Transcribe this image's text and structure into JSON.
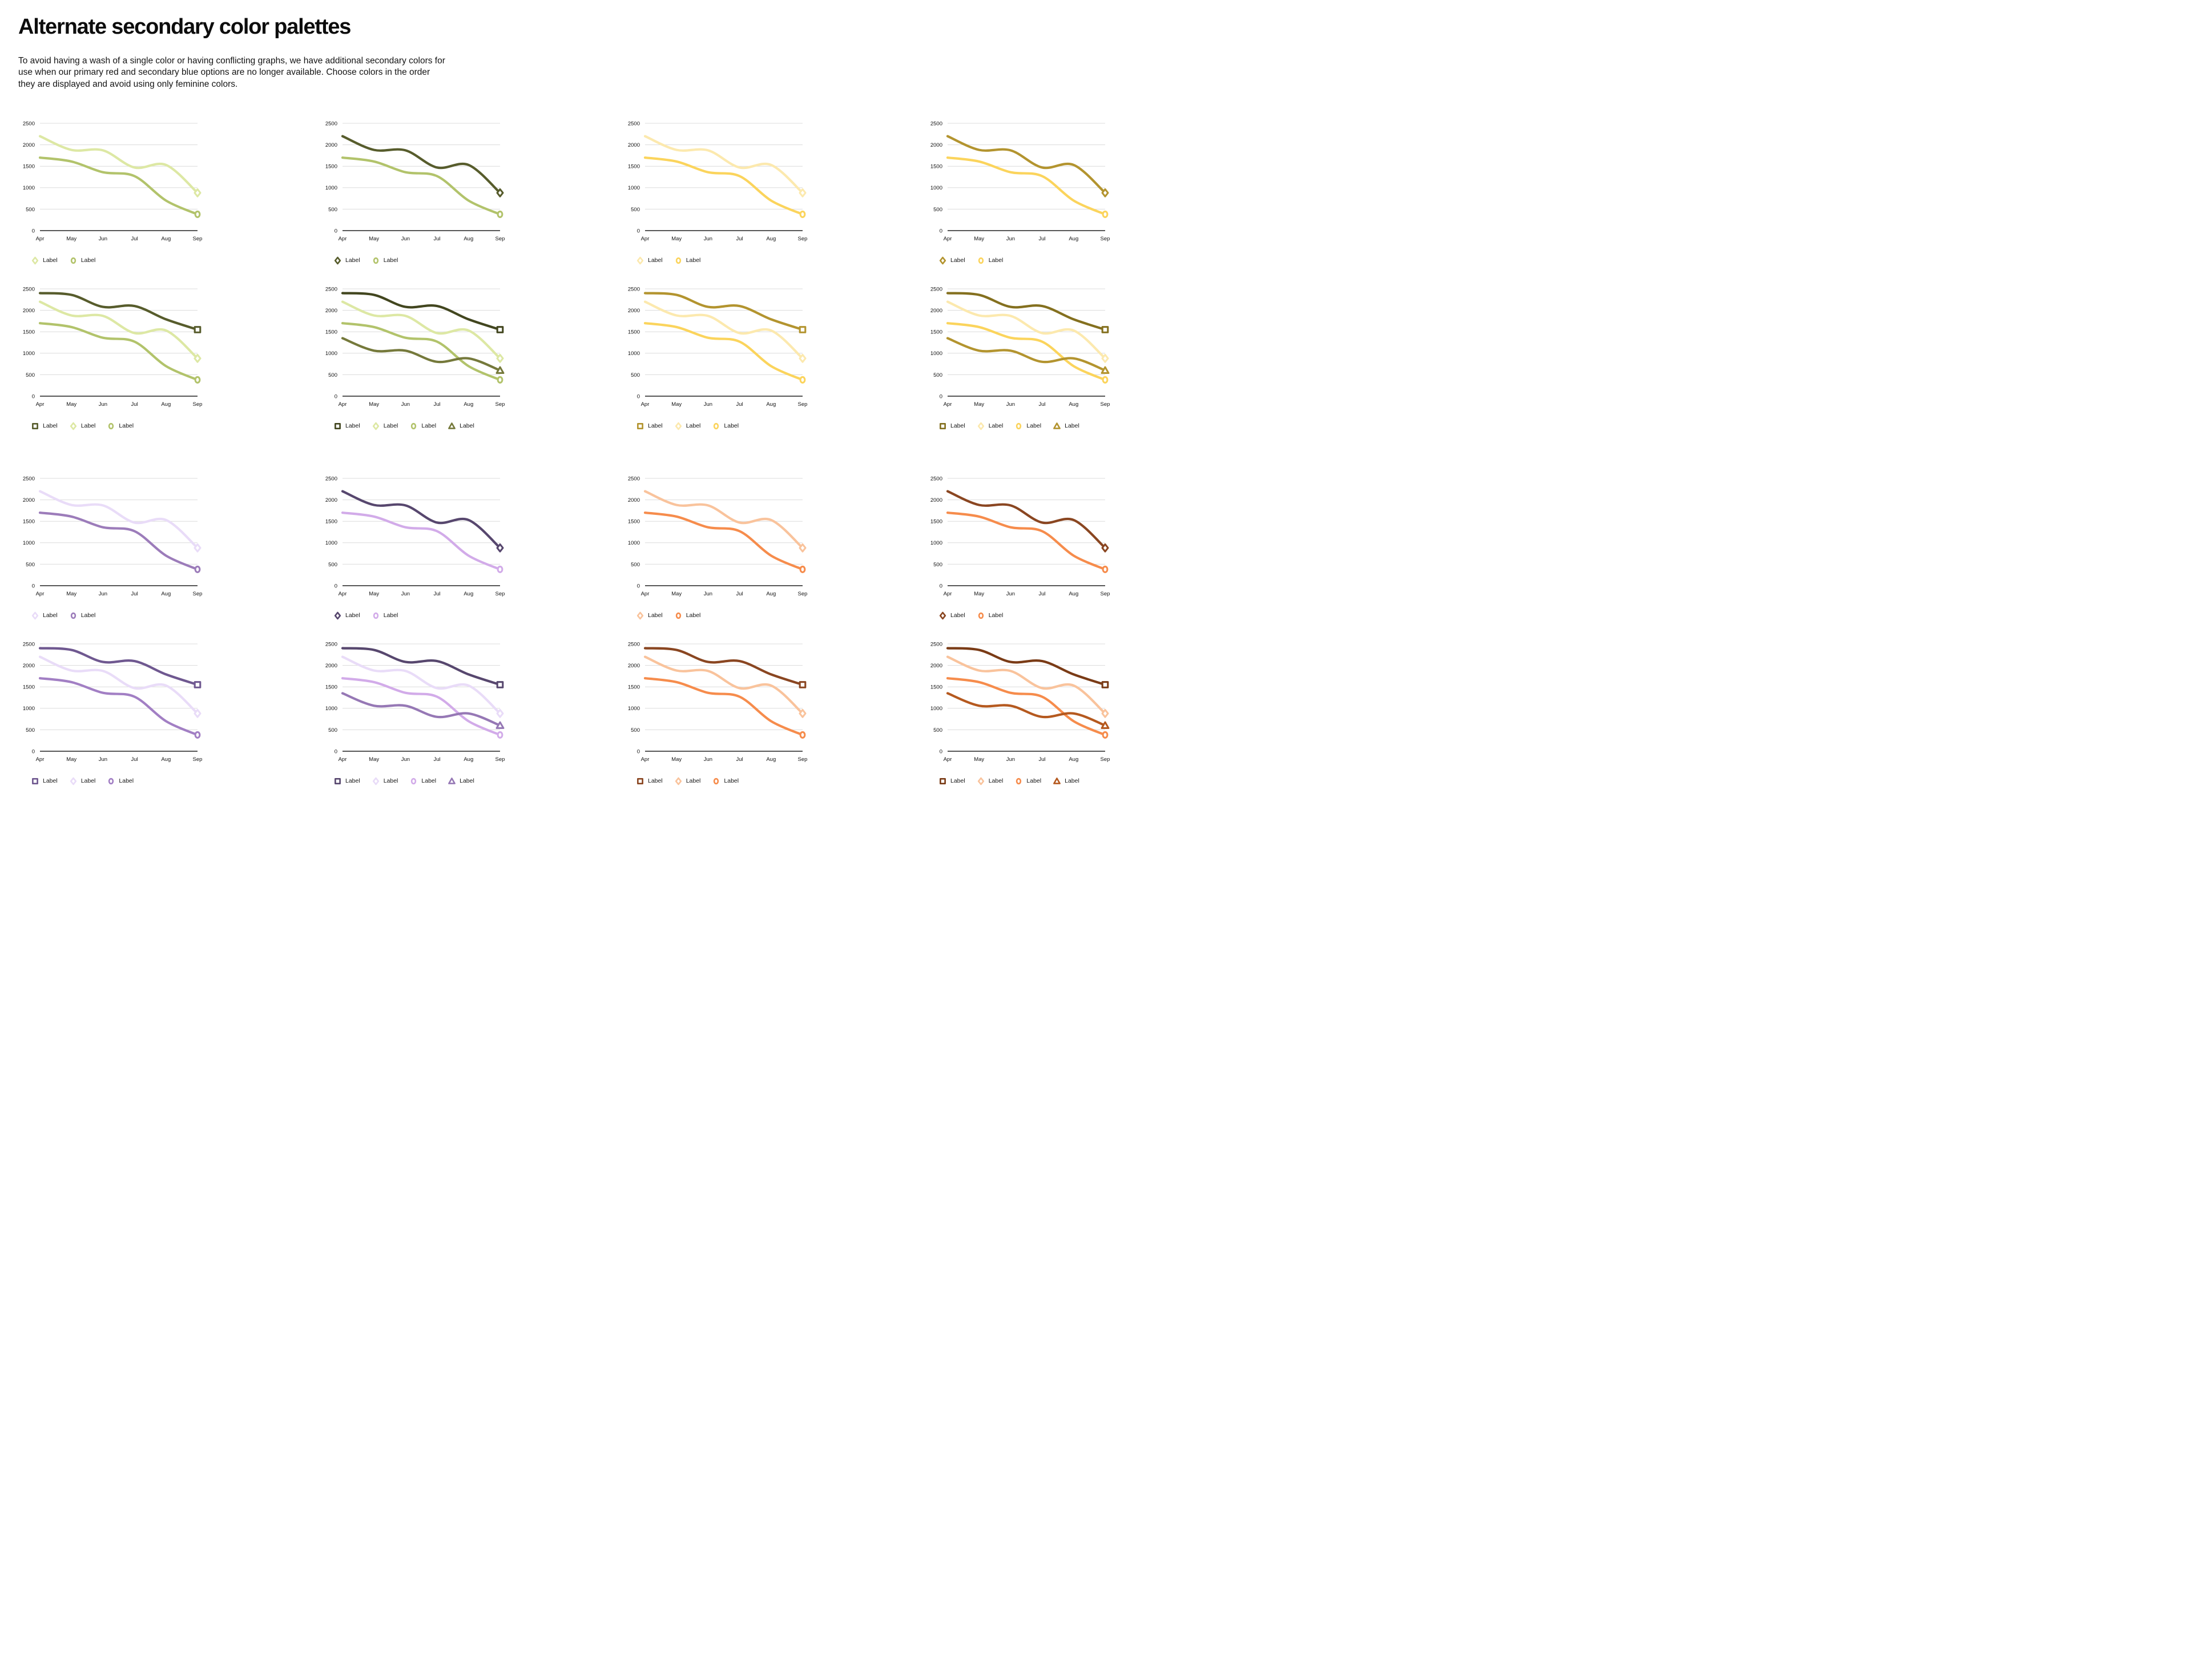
{
  "page": {
    "title": "Alternate secondary color palettes",
    "description": "To avoid having a wash of a single color or having conflicting graphs, we have additional secondary colors for use when our primary red and secondary blue options are no longer available. Choose colors in the order they are displayed and avoid using only feminine colors."
  },
  "chart_data": {
    "type": "line",
    "x": [
      "Apr",
      "May",
      "Jun",
      "Jul",
      "Aug",
      "Sep"
    ],
    "ylabel": "",
    "xlabel": "",
    "ylim": [
      0,
      2500
    ],
    "yticks": [
      0,
      500,
      1000,
      1500,
      2000,
      2500
    ],
    "grid": "horizontal",
    "legend_position": "bottom",
    "legend_label": "Label",
    "series": {
      "A": [
        2200,
        1880,
        1870,
        1470,
        1530,
        880
      ],
      "B": [
        1700,
        1610,
        1360,
        1270,
        700,
        380
      ],
      "C": [
        2400,
        2360,
        2080,
        2100,
        1790,
        1550
      ],
      "D": [
        1350,
        1060,
        1060,
        800,
        880,
        600
      ]
    },
    "axis_colors": {
      "gridline": "#dcdcdc",
      "baseline": "#3f3f3f",
      "tick_text": "#141414"
    },
    "charts": [
      {
        "palette": "green",
        "series": [
          {
            "data": "A",
            "marker": "diamond",
            "color": "#dde8a4"
          },
          {
            "data": "B",
            "marker": "circle",
            "color": "#b2c36b"
          }
        ]
      },
      {
        "palette": "green",
        "series": [
          {
            "data": "A",
            "marker": "diamond",
            "color": "#575c2c"
          },
          {
            "data": "B",
            "marker": "circle",
            "color": "#b2c36b"
          }
        ]
      },
      {
        "palette": "yellow",
        "series": [
          {
            "data": "A",
            "marker": "diamond",
            "color": "#fce9ae"
          },
          {
            "data": "B",
            "marker": "circle",
            "color": "#fbd45c"
          }
        ]
      },
      {
        "palette": "yellow",
        "series": [
          {
            "data": "A",
            "marker": "diamond",
            "color": "#b3942f"
          },
          {
            "data": "B",
            "marker": "circle",
            "color": "#fbd45c"
          }
        ]
      },
      {
        "palette": "green",
        "series": [
          {
            "data": "C",
            "marker": "square",
            "color": "#575c2c"
          },
          {
            "data": "A",
            "marker": "diamond",
            "color": "#dde8a4"
          },
          {
            "data": "B",
            "marker": "circle",
            "color": "#b2c36b"
          }
        ]
      },
      {
        "palette": "green",
        "series": [
          {
            "data": "C",
            "marker": "square",
            "color": "#42461f"
          },
          {
            "data": "A",
            "marker": "diamond",
            "color": "#dde8a4"
          },
          {
            "data": "B",
            "marker": "circle",
            "color": "#b2c36b"
          },
          {
            "data": "D",
            "marker": "triangle",
            "color": "#75793b"
          }
        ]
      },
      {
        "palette": "yellow",
        "series": [
          {
            "data": "C",
            "marker": "square",
            "color": "#b3942f"
          },
          {
            "data": "A",
            "marker": "diamond",
            "color": "#fce9ae"
          },
          {
            "data": "B",
            "marker": "circle",
            "color": "#fbd45c"
          }
        ]
      },
      {
        "palette": "yellow",
        "series": [
          {
            "data": "C",
            "marker": "square",
            "color": "#84701f"
          },
          {
            "data": "A",
            "marker": "diamond",
            "color": "#fce9ae"
          },
          {
            "data": "B",
            "marker": "circle",
            "color": "#fbd45c"
          },
          {
            "data": "D",
            "marker": "triangle",
            "color": "#b3942f"
          }
        ]
      },
      {
        "palette": "purple",
        "series": [
          {
            "data": "A",
            "marker": "diamond",
            "color": "#e9dcf8"
          },
          {
            "data": "B",
            "marker": "circle",
            "color": "#9c7cba"
          }
        ]
      },
      {
        "palette": "purple",
        "series": [
          {
            "data": "A",
            "marker": "diamond",
            "color": "#57476e"
          },
          {
            "data": "B",
            "marker": "circle",
            "color": "#d2abe9"
          }
        ]
      },
      {
        "palette": "orange",
        "series": [
          {
            "data": "A",
            "marker": "diamond",
            "color": "#f9c39c"
          },
          {
            "data": "B",
            "marker": "circle",
            "color": "#f68c4c"
          }
        ]
      },
      {
        "palette": "orange",
        "series": [
          {
            "data": "A",
            "marker": "diamond",
            "color": "#8a4621"
          },
          {
            "data": "B",
            "marker": "circle",
            "color": "#f68c4c"
          }
        ]
      },
      {
        "palette": "purple",
        "series": [
          {
            "data": "C",
            "marker": "square",
            "color": "#6f5890"
          },
          {
            "data": "A",
            "marker": "diamond",
            "color": "#e9dcf8"
          },
          {
            "data": "B",
            "marker": "circle",
            "color": "#a27fc4"
          }
        ]
      },
      {
        "palette": "purple",
        "series": [
          {
            "data": "C",
            "marker": "square",
            "color": "#57476e"
          },
          {
            "data": "A",
            "marker": "diamond",
            "color": "#e9dcf8"
          },
          {
            "data": "B",
            "marker": "circle",
            "color": "#d2abe9"
          },
          {
            "data": "D",
            "marker": "triangle",
            "color": "#9678b5"
          }
        ]
      },
      {
        "palette": "orange",
        "series": [
          {
            "data": "C",
            "marker": "square",
            "color": "#8a4621"
          },
          {
            "data": "A",
            "marker": "diamond",
            "color": "#f9c39c"
          },
          {
            "data": "B",
            "marker": "circle",
            "color": "#f68c4c"
          }
        ]
      },
      {
        "palette": "orange",
        "series": [
          {
            "data": "C",
            "marker": "square",
            "color": "#7a3b16"
          },
          {
            "data": "A",
            "marker": "diamond",
            "color": "#f9c39c"
          },
          {
            "data": "B",
            "marker": "circle",
            "color": "#f68c4c"
          },
          {
            "data": "D",
            "marker": "triangle",
            "color": "#b5591f"
          }
        ]
      }
    ]
  }
}
